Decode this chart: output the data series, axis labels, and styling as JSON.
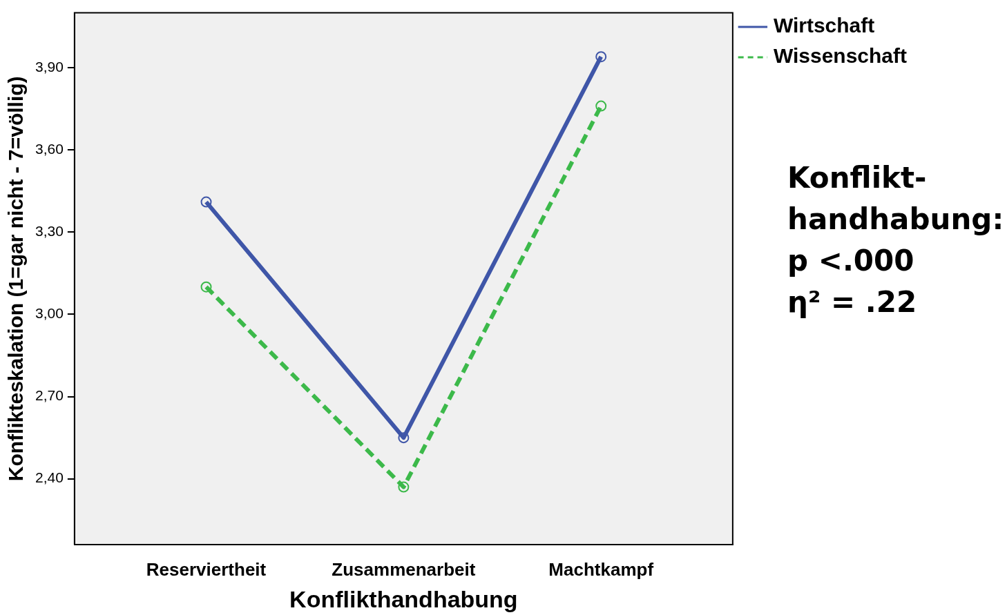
{
  "chart_data": {
    "type": "line",
    "xlabel": "Konflikthandhabung",
    "ylabel": "Konflikteskalation (1=gar nicht - 7=völlig)",
    "categories": [
      "Reserviertheit",
      "Zusammenarbeit",
      "Machtkampf"
    ],
    "series": [
      {
        "name": "Wirtschaft",
        "color": "#3f56a8",
        "values": [
          3.41,
          2.55,
          3.94
        ],
        "line_style": "solid"
      },
      {
        "name": "Wissenschaft",
        "color": "#3cb94a",
        "values": [
          3.1,
          2.37,
          3.76
        ],
        "line_style": "dashed"
      }
    ],
    "ylim": [
      2.16,
      4.1
    ],
    "yticks": [
      {
        "value": 2.4,
        "label": "2,40"
      },
      {
        "value": 2.7,
        "label": "2,70"
      },
      {
        "value": 3.0,
        "label": "3,00"
      },
      {
        "value": 3.3,
        "label": "3,30"
      },
      {
        "value": 3.6,
        "label": "3,60"
      },
      {
        "value": 3.9,
        "label": "3,90"
      }
    ],
    "grid": false,
    "legend": "top right",
    "marker": "circle",
    "annotations": [
      "Konflikt-",
      "handhabung:",
      "p <.000",
      "η² = .22"
    ]
  }
}
